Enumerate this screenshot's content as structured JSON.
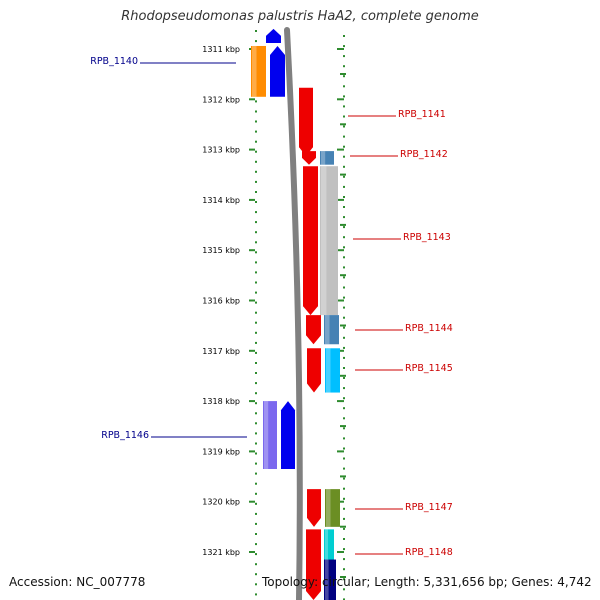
{
  "title": "Rhodopseudomonas palustris HaA2, complete genome",
  "accession": "Accession: NC_007778",
  "topology": "Topology: circular; Length: 5,331,656 bp; Genes: 4,742",
  "scale": {
    "start_kbp": 1310.8,
    "end_kbp": 1321.98,
    "ticks": [
      {
        "label": "1311 kbp",
        "kbp": 1311
      },
      {
        "label": "1312 kbp",
        "kbp": 1312
      },
      {
        "label": "1313 kbp",
        "kbp": 1313
      },
      {
        "label": "1314 kbp",
        "kbp": 1314
      },
      {
        "label": "1315 kbp",
        "kbp": 1315
      },
      {
        "label": "1316 kbp",
        "kbp": 1316
      },
      {
        "label": "1317 kbp",
        "kbp": 1317
      },
      {
        "label": "1318 kbp",
        "kbp": 1318
      },
      {
        "label": "1319 kbp",
        "kbp": 1319
      },
      {
        "label": "1320 kbp",
        "kbp": 1320
      },
      {
        "label": "1321 kbp",
        "kbp": 1321
      }
    ]
  },
  "colors": {
    "ticks": "#2e8b2e",
    "backbone": "#808080",
    "minus_label": "#00008b",
    "plus_label": "#cc0000"
  },
  "genes": [
    {
      "id": "g_top",
      "label": "",
      "strand": "-",
      "start_kbp": 1310.6,
      "end_kbp": 1310.88,
      "gene_color": "#0000ee",
      "cds_color": "#1515ff"
    },
    {
      "id": "RPB_1140",
      "label": "RPB_1140",
      "strand": "-",
      "start_kbp": 1310.94,
      "end_kbp": 1311.95,
      "gene_color": "#0000ee",
      "cds_color": "#ff8c00"
    },
    {
      "id": "RPB_1141",
      "label": "RPB_1141",
      "strand": "+",
      "start_kbp": 1311.77,
      "end_kbp": 1313.13,
      "gene_color": "#ee0000",
      "cds_color": ""
    },
    {
      "id": "RPB_1142",
      "label": "RPB_1142",
      "strand": "+",
      "start_kbp": 1313.03,
      "end_kbp": 1313.3,
      "gene_color": "#ee0000",
      "cds_color": "#4682b4"
    },
    {
      "id": "RPB_1143",
      "label": "RPB_1143",
      "strand": "+",
      "start_kbp": 1313.33,
      "end_kbp": 1316.29,
      "gene_color": "#ee0000",
      "cds_color": "#c0c0c0"
    },
    {
      "id": "RPB_1144",
      "label": "RPB_1144",
      "strand": "+",
      "start_kbp": 1316.29,
      "end_kbp": 1316.87,
      "gene_color": "#ee0000",
      "cds_color": "#4682b4"
    },
    {
      "id": "RPB_1145",
      "label": "RPB_1145",
      "strand": "+",
      "start_kbp": 1316.95,
      "end_kbp": 1317.83,
      "gene_color": "#ee0000",
      "cds_color": "#00bfff"
    },
    {
      "id": "RPB_1146",
      "label": "RPB_1146",
      "strand": "-",
      "start_kbp": 1318.0,
      "end_kbp": 1319.35,
      "gene_color": "#0000ee",
      "cds_color": "#7b68ee"
    },
    {
      "id": "RPB_1147",
      "label": "RPB_1147",
      "strand": "+",
      "start_kbp": 1319.75,
      "end_kbp": 1320.5,
      "gene_color": "#ee0000",
      "cds_color": "#6b8e23"
    },
    {
      "id": "RPB_1148",
      "label": "RPB_1148",
      "strand": "+",
      "start_kbp": 1320.55,
      "end_kbp": 1322.0,
      "gene_color": "#ee0000",
      "cds_color": "#00ced1"
    },
    {
      "id": "g_bottom_blue",
      "label": "",
      "strand": "+",
      "start_kbp": 1321.15,
      "end_kbp": 1322.0,
      "gene_color": "",
      "cds_color": "#000080"
    }
  ]
}
